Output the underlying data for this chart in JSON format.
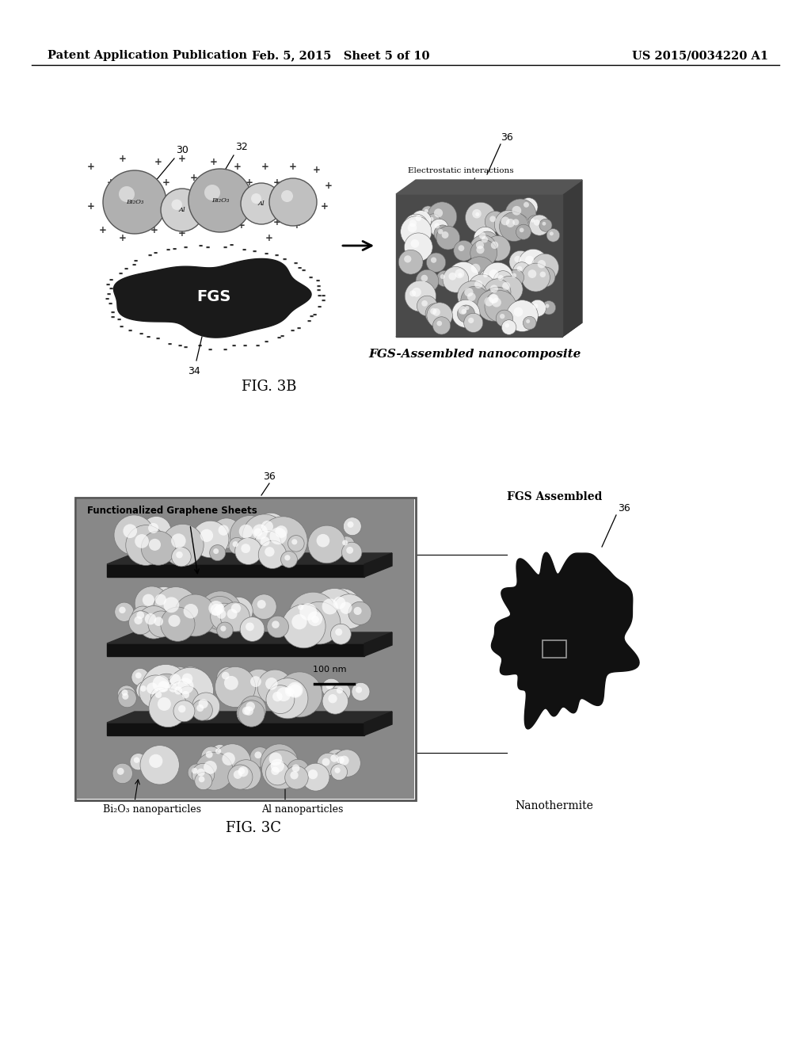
{
  "background_color": "#ffffff",
  "header": {
    "left": "Patent Application Publication",
    "center": "Feb. 5, 2015   Sheet 5 of 10",
    "right": "US 2015/0034220 A1",
    "fontsize": 10.5
  },
  "fig3b_label": "FIG. 3B",
  "fig3c_label": "FIG. 3C",
  "nanocomposite_label": "FGS-Assembled nanocomposite",
  "electrostatic_label": "Electrostatic interactions",
  "fgs_label": "FGS",
  "fgs_assembled_label": "FGS Assembled",
  "nanothermite_label": "Nanothermite",
  "func_graphene_label": "Functionalized Graphene Sheets",
  "bi2o3_label": "Bi₂O₃ nanoparticles",
  "al_label": "Al nanoparticles",
  "scale_bar_label": "100 nm"
}
